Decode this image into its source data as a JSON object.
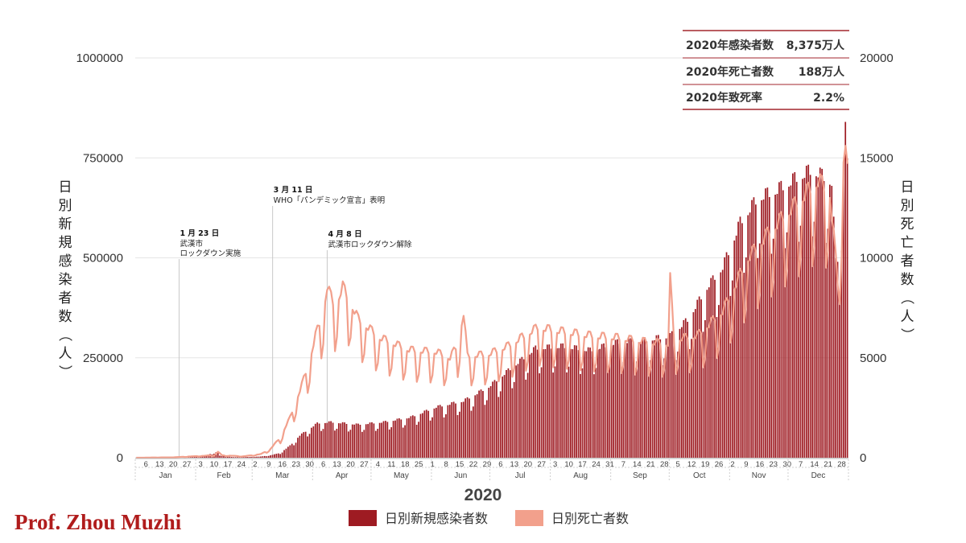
{
  "credit": "Prof. Zhou Muzhi",
  "stats": {
    "rows": [
      {
        "label": "2020年感染者数",
        "value": "8,375万人"
      },
      {
        "label": "2020年死亡者数",
        "value": "188万人"
      },
      {
        "label": "2020年致死率",
        "value": "2.2%"
      }
    ]
  },
  "colors": {
    "cases": "#9e1b22",
    "deaths": "#f2a08c",
    "stat_rule": "#a3262d",
    "grid": "#e6e6e6"
  },
  "chart_data": {
    "type": "bar",
    "xlabel": "2020",
    "ylabel": "日別新規感染者数（人）",
    "y2label": "日別死亡者数（人）",
    "ylim": [
      0,
      1000000
    ],
    "y2lim": [
      0,
      20000
    ],
    "yticks": [
      "0",
      "250000",
      "500000",
      "750000",
      "1000000"
    ],
    "y2ticks": [
      "0",
      "5000",
      "10000",
      "15000",
      "20000"
    ],
    "grid": true,
    "legend_position": "bottom",
    "x_range": [
      "2020-01-01",
      "2020-12-31"
    ],
    "months": [
      "Jan",
      "Feb",
      "Mar",
      "Apr",
      "May",
      "Jun",
      "Jul",
      "Aug",
      "Sep",
      "Oct",
      "Nov",
      "Dec"
    ],
    "day_ticks": [
      {
        "date": "2020-01-06",
        "label": "6"
      },
      {
        "date": "2020-01-13",
        "label": "13"
      },
      {
        "date": "2020-01-20",
        "label": "20"
      },
      {
        "date": "2020-01-27",
        "label": "27"
      },
      {
        "date": "2020-02-03",
        "label": "3"
      },
      {
        "date": "2020-02-10",
        "label": "10"
      },
      {
        "date": "2020-02-17",
        "label": "17"
      },
      {
        "date": "2020-02-24",
        "label": "24"
      },
      {
        "date": "2020-03-02",
        "label": "2"
      },
      {
        "date": "2020-03-09",
        "label": "9"
      },
      {
        "date": "2020-03-16",
        "label": "16"
      },
      {
        "date": "2020-03-23",
        "label": "23"
      },
      {
        "date": "2020-03-30",
        "label": "30"
      },
      {
        "date": "2020-04-06",
        "label": "6"
      },
      {
        "date": "2020-04-13",
        "label": "13"
      },
      {
        "date": "2020-04-20",
        "label": "20"
      },
      {
        "date": "2020-04-27",
        "label": "27"
      },
      {
        "date": "2020-05-04",
        "label": "4"
      },
      {
        "date": "2020-05-11",
        "label": "11"
      },
      {
        "date": "2020-05-18",
        "label": "18"
      },
      {
        "date": "2020-05-25",
        "label": "25"
      },
      {
        "date": "2020-06-01",
        "label": "1"
      },
      {
        "date": "2020-06-08",
        "label": "8"
      },
      {
        "date": "2020-06-15",
        "label": "15"
      },
      {
        "date": "2020-06-22",
        "label": "22"
      },
      {
        "date": "2020-06-29",
        "label": "29"
      },
      {
        "date": "2020-07-06",
        "label": "6"
      },
      {
        "date": "2020-07-13",
        "label": "13"
      },
      {
        "date": "2020-07-20",
        "label": "20"
      },
      {
        "date": "2020-07-27",
        "label": "27"
      },
      {
        "date": "2020-08-03",
        "label": "3"
      },
      {
        "date": "2020-08-10",
        "label": "10"
      },
      {
        "date": "2020-08-17",
        "label": "17"
      },
      {
        "date": "2020-08-24",
        "label": "24"
      },
      {
        "date": "2020-08-31",
        "label": "31"
      },
      {
        "date": "2020-09-07",
        "label": "7"
      },
      {
        "date": "2020-09-14",
        "label": "14"
      },
      {
        "date": "2020-09-21",
        "label": "21"
      },
      {
        "date": "2020-09-28",
        "label": "28"
      },
      {
        "date": "2020-10-05",
        "label": "5"
      },
      {
        "date": "2020-10-12",
        "label": "12"
      },
      {
        "date": "2020-10-19",
        "label": "19"
      },
      {
        "date": "2020-10-26",
        "label": "26"
      },
      {
        "date": "2020-11-02",
        "label": "2"
      },
      {
        "date": "2020-11-09",
        "label": "9"
      },
      {
        "date": "2020-11-16",
        "label": "16"
      },
      {
        "date": "2020-11-23",
        "label": "23"
      },
      {
        "date": "2020-11-30",
        "label": "30"
      },
      {
        "date": "2020-12-07",
        "label": "7"
      },
      {
        "date": "2020-12-14",
        "label": "14"
      },
      {
        "date": "2020-12-21",
        "label": "21"
      },
      {
        "date": "2020-12-28",
        "label": "28"
      }
    ],
    "series": [
      {
        "name": "日別新規感染者数",
        "type": "bar",
        "axis": "left",
        "weekly_dip": 0.22,
        "points": [
          [
            "2020-01-01",
            100
          ],
          [
            "2020-01-22",
            200
          ],
          [
            "2020-01-27",
            2500
          ],
          [
            "2020-02-04",
            3500
          ],
          [
            "2020-02-12",
            15000
          ],
          [
            "2020-02-13",
            5000
          ],
          [
            "2020-02-20",
            1500
          ],
          [
            "2020-02-28",
            2000
          ],
          [
            "2020-03-05",
            3000
          ],
          [
            "2020-03-10",
            6000
          ],
          [
            "2020-03-15",
            12000
          ],
          [
            "2020-03-20",
            30000
          ],
          [
            "2020-03-25",
            55000
          ],
          [
            "2020-03-31",
            75000
          ],
          [
            "2020-04-03",
            85000
          ],
          [
            "2020-04-10",
            88000
          ],
          [
            "2020-04-24",
            82000
          ],
          [
            "2020-05-07",
            88000
          ],
          [
            "2020-05-21",
            100000
          ],
          [
            "2020-06-03",
            125000
          ],
          [
            "2020-06-17",
            140000
          ],
          [
            "2020-06-30",
            175000
          ],
          [
            "2020-07-10",
            215000
          ],
          [
            "2020-07-24",
            270000
          ],
          [
            "2020-08-07",
            275000
          ],
          [
            "2020-08-21",
            265000
          ],
          [
            "2020-09-04",
            285000
          ],
          [
            "2020-09-18",
            290000
          ],
          [
            "2020-10-01",
            300000
          ],
          [
            "2020-10-10",
            340000
          ],
          [
            "2020-10-20",
            420000
          ],
          [
            "2020-10-28",
            470000
          ],
          [
            "2020-11-06",
            580000
          ],
          [
            "2020-11-15",
            640000
          ],
          [
            "2020-11-25",
            660000
          ],
          [
            "2020-12-05",
            690000
          ],
          [
            "2020-12-13",
            710000
          ],
          [
            "2020-12-23",
            680000
          ],
          [
            "2020-12-25",
            480000
          ],
          [
            "2020-12-27",
            500000
          ],
          [
            "2020-12-29",
            740000
          ],
          [
            "2020-12-30",
            840000
          ],
          [
            "2020-12-31",
            720000
          ]
        ]
      },
      {
        "name": "日別死亡者数",
        "type": "line",
        "axis": "right",
        "weekly_dip": 0.28,
        "points": [
          [
            "2020-01-01",
            0
          ],
          [
            "2020-01-20",
            20
          ],
          [
            "2020-02-01",
            80
          ],
          [
            "2020-02-10",
            120
          ],
          [
            "2020-02-12",
            300
          ],
          [
            "2020-02-14",
            120
          ],
          [
            "2020-02-25",
            70
          ],
          [
            "2020-03-05",
            180
          ],
          [
            "2020-03-10",
            450
          ],
          [
            "2020-03-15",
            1000
          ],
          [
            "2020-03-20",
            2000
          ],
          [
            "2020-03-25",
            3300
          ],
          [
            "2020-03-30",
            4800
          ],
          [
            "2020-04-02",
            6000
          ],
          [
            "2020-04-06",
            7200
          ],
          [
            "2020-04-08",
            8400
          ],
          [
            "2020-04-12",
            7400
          ],
          [
            "2020-04-16",
            8400
          ],
          [
            "2020-04-24",
            6800
          ],
          [
            "2020-05-05",
            5900
          ],
          [
            "2020-05-20",
            5300
          ],
          [
            "2020-06-03",
            5200
          ],
          [
            "2020-06-10",
            4900
          ],
          [
            "2020-06-14",
            5600
          ],
          [
            "2020-06-17",
            7100
          ],
          [
            "2020-06-19",
            5000
          ],
          [
            "2020-06-30",
            5100
          ],
          [
            "2020-07-10",
            5500
          ],
          [
            "2020-07-25",
            6400
          ],
          [
            "2020-08-07",
            6200
          ],
          [
            "2020-08-21",
            6000
          ],
          [
            "2020-09-04",
            5900
          ],
          [
            "2020-09-18",
            5700
          ],
          [
            "2020-09-30",
            5600
          ],
          [
            "2020-10-01",
            8800
          ],
          [
            "2020-10-03",
            5800
          ],
          [
            "2020-10-15",
            6000
          ],
          [
            "2020-10-28",
            7200
          ],
          [
            "2020-11-10",
            9800
          ],
          [
            "2020-11-22",
            11200
          ],
          [
            "2020-12-05",
            12500
          ],
          [
            "2020-12-16",
            13600
          ],
          [
            "2020-12-22",
            13000
          ],
          [
            "2020-12-26",
            8600
          ],
          [
            "2020-12-29",
            14800
          ],
          [
            "2020-12-30",
            15600
          ],
          [
            "2020-12-31",
            14000
          ]
        ]
      }
    ],
    "annotations": [
      {
        "date": "2020-01-23",
        "label": "1 月 23 日",
        "lines": [
          "武漢市",
          "ロックダウン実施"
        ]
      },
      {
        "date": "2020-03-11",
        "label": "3 月 11 日",
        "lines": [
          "WHO「パンデミック宣言」表明"
        ]
      },
      {
        "date": "2020-04-08",
        "label": "4 月 8 日",
        "lines": [
          "武漢市ロックダウン解除"
        ]
      }
    ]
  }
}
